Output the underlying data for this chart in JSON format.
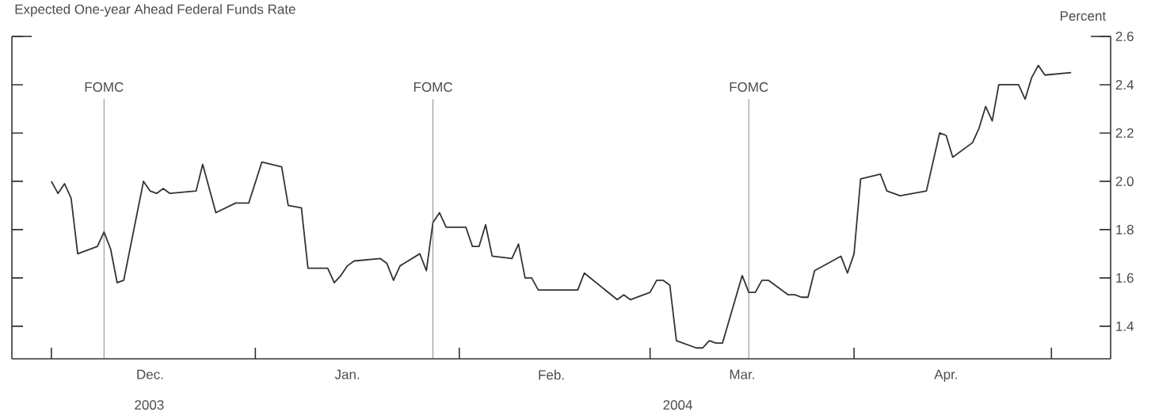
{
  "chart_data": {
    "type": "line",
    "title": "Expected One-year Ahead Federal Funds Rate",
    "ylabel": "Percent",
    "x": [
      "2003-12-01",
      "2003-12-02",
      "2003-12-03",
      "2003-12-04",
      "2003-12-05",
      "2003-12-08",
      "2003-12-09",
      "2003-12-10",
      "2003-12-11",
      "2003-12-12",
      "2003-12-15",
      "2003-12-16",
      "2003-12-17",
      "2003-12-18",
      "2003-12-19",
      "2003-12-23",
      "2003-12-24",
      "2003-12-26",
      "2003-12-29",
      "2003-12-30",
      "2003-12-31",
      "2004-01-02",
      "2004-01-05",
      "2004-01-06",
      "2004-01-08",
      "2004-01-09",
      "2004-01-12",
      "2004-01-13",
      "2004-01-14",
      "2004-01-15",
      "2004-01-16",
      "2004-01-20",
      "2004-01-21",
      "2004-01-22",
      "2004-01-23",
      "2004-01-26",
      "2004-01-27",
      "2004-01-28",
      "2004-01-29",
      "2004-01-30",
      "2004-02-02",
      "2004-02-03",
      "2004-02-04",
      "2004-02-05",
      "2004-02-06",
      "2004-02-09",
      "2004-02-10",
      "2004-02-11",
      "2004-02-12",
      "2004-02-13",
      "2004-02-19",
      "2004-02-20",
      "2004-02-25",
      "2004-02-26",
      "2004-02-27",
      "2004-03-01",
      "2004-03-02",
      "2004-03-03",
      "2004-03-04",
      "2004-03-05",
      "2004-03-08",
      "2004-03-09",
      "2004-03-10",
      "2004-03-11",
      "2004-03-12",
      "2004-03-15",
      "2004-03-16",
      "2004-03-17",
      "2004-03-18",
      "2004-03-19",
      "2004-03-22",
      "2004-03-23",
      "2004-03-24",
      "2004-03-25",
      "2004-03-26",
      "2004-03-30",
      "2004-03-31",
      "2004-04-01",
      "2004-04-02",
      "2004-04-05",
      "2004-04-06",
      "2004-04-07",
      "2004-04-08",
      "2004-04-12",
      "2004-04-14",
      "2004-04-15",
      "2004-04-16",
      "2004-04-19",
      "2004-04-20",
      "2004-04-21",
      "2004-04-22",
      "2004-04-23",
      "2004-04-26",
      "2004-04-27",
      "2004-04-28",
      "2004-04-29",
      "2004-04-30",
      "2004-05-04"
    ],
    "series": [
      {
        "color": "#333333",
        "values": [
          2.0,
          1.95,
          1.99,
          1.93,
          1.7,
          1.73,
          1.79,
          1.72,
          1.58,
          1.59,
          2.0,
          1.96,
          1.95,
          1.97,
          1.95,
          1.96,
          2.07,
          1.87,
          1.91,
          1.91,
          1.91,
          2.08,
          2.06,
          1.9,
          1.89,
          1.64,
          1.64,
          1.58,
          1.61,
          1.65,
          1.67,
          1.68,
          1.66,
          1.59,
          1.65,
          1.7,
          1.63,
          1.83,
          1.87,
          1.81,
          1.81,
          1.73,
          1.73,
          1.82,
          1.69,
          1.68,
          1.74,
          1.6,
          1.6,
          1.55,
          1.55,
          1.62,
          1.51,
          1.53,
          1.51,
          1.54,
          1.59,
          1.59,
          1.57,
          1.34,
          1.31,
          1.31,
          1.34,
          1.33,
          1.33,
          1.61,
          1.54,
          1.54,
          1.59,
          1.59,
          1.53,
          1.53,
          1.52,
          1.52,
          1.63,
          1.69,
          1.62,
          1.7,
          2.01,
          2.03,
          1.96,
          1.95,
          1.94,
          1.96,
          2.2,
          2.19,
          2.1,
          2.16,
          2.22,
          2.31,
          2.25,
          2.4,
          2.4,
          2.34,
          2.43,
          2.48,
          2.44,
          2.45
        ]
      }
    ],
    "line_style": "solid",
    "xlim": [
      "2003-11-25",
      "2004-05-10"
    ],
    "xticks": [
      {
        "value": "2003-12-01",
        "label": null
      },
      {
        "value": "2004-01-01",
        "label": null
      },
      {
        "value": "2004-02-01",
        "label": null
      },
      {
        "value": "2004-03-01",
        "label": null
      },
      {
        "value": "2004-04-01",
        "label": null
      },
      {
        "value": "2004-05-01",
        "label": null
      },
      {
        "value": "2003-12-16",
        "label": "Dec."
      },
      {
        "value": "2004-01-15",
        "label": "Jan."
      },
      {
        "value": "2004-02-15",
        "label": "Feb."
      },
      {
        "value": "2004-03-15",
        "label": "Mar."
      },
      {
        "value": "2004-04-15",
        "label": "Apr."
      }
    ],
    "ylim": [
      1.265,
      2.6
    ],
    "yticks": [
      1.4,
      1.6,
      1.8,
      {
        "value": 2.0,
        "label": "2.0"
      },
      2.2,
      2.4,
      2.6
    ],
    "ref_lines": [
      {
        "axis": "x",
        "value": "2003-12-09",
        "label": "FOMC",
        "color": "#555555"
      },
      {
        "axis": "x",
        "value": "2004-01-28",
        "label": "FOMC",
        "color": "#555555"
      },
      {
        "axis": "x",
        "value": "2004-03-16",
        "label": "FOMC",
        "color": "#555555"
      }
    ],
    "annotations": [
      "2003",
      "2004"
    ]
  }
}
